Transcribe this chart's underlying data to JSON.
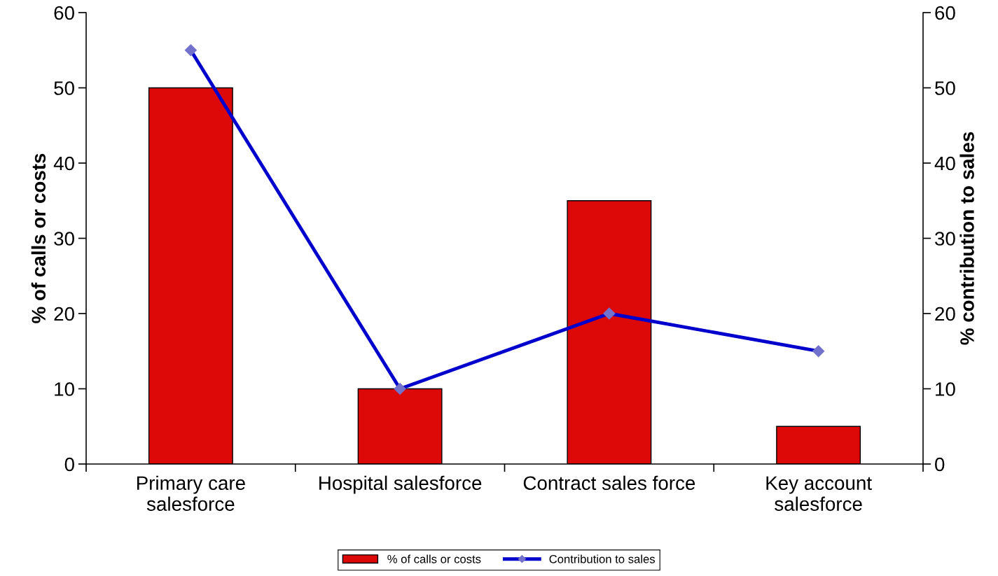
{
  "chart_data": {
    "type": "bar",
    "ylabel": "% of calls or costs",
    "y2label": "% contribution to sales",
    "categories": [
      "Primary care\nsalesforce",
      "Hospital salesforce",
      "Contract sales force",
      "Key account\nsalesforce"
    ],
    "series": [
      {
        "name": "% of calls or costs",
        "color": "#dd0808",
        "values": [
          50,
          10,
          35,
          5
        ]
      },
      {
        "name": "Contribution to sales",
        "type": "line",
        "axis": "y2",
        "color": "#0000cc",
        "marker": "diamond",
        "values": [
          55,
          10,
          20,
          15
        ]
      }
    ],
    "ylim": [
      0,
      60
    ],
    "yticks": [
      0,
      10,
      20,
      30,
      40,
      50,
      60
    ],
    "y2lim": [
      0,
      60
    ],
    "y2ticks": [
      0,
      10,
      20,
      30,
      40,
      50,
      60
    ],
    "grid": false,
    "legend": "bottom"
  }
}
